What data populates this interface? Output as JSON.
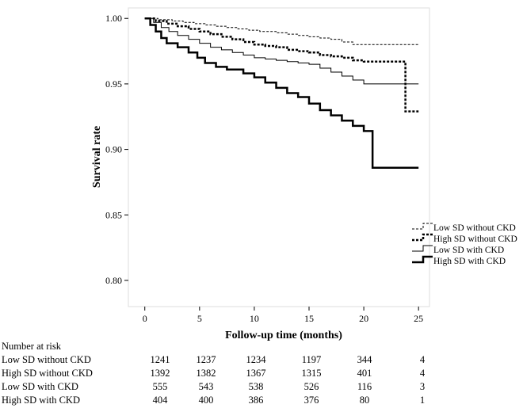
{
  "chart_data": {
    "type": "line",
    "step": true,
    "title": "",
    "xlabel": "Follow-up time (months)",
    "ylabel": "Survival rate",
    "xlim": [
      -1.5,
      26
    ],
    "ylim": [
      0.78,
      1.008
    ],
    "xticks": [
      0,
      5,
      10,
      15,
      20,
      25
    ],
    "xtick_labels": [
      "0",
      "5",
      "10",
      "15",
      "20",
      "25"
    ],
    "yticks": [
      0.8,
      0.85,
      0.9,
      0.95,
      1.0
    ],
    "ytick_labels": [
      "0.80",
      "0.85",
      "0.90",
      "0.95",
      "1.00"
    ],
    "legend_position": "right",
    "series": [
      {
        "name": "Low SD without CKD",
        "style": "thin-dashed",
        "points": [
          [
            0,
            1.0
          ],
          [
            1.2,
            0.999
          ],
          [
            2.5,
            0.998
          ],
          [
            3.5,
            0.997
          ],
          [
            4.5,
            0.996
          ],
          [
            5.5,
            0.995
          ],
          [
            6.5,
            0.994
          ],
          [
            7.5,
            0.993
          ],
          [
            8.5,
            0.992
          ],
          [
            9.5,
            0.991
          ],
          [
            10.5,
            0.99
          ],
          [
            12,
            0.989
          ],
          [
            13,
            0.988
          ],
          [
            14,
            0.987
          ],
          [
            15,
            0.986
          ],
          [
            16,
            0.985
          ],
          [
            17,
            0.984
          ],
          [
            18,
            0.982
          ],
          [
            19,
            0.98
          ],
          [
            25,
            0.98
          ]
        ]
      },
      {
        "name": "High SD without CKD",
        "style": "thick-dashed",
        "points": [
          [
            0,
            1.0
          ],
          [
            1,
            0.998
          ],
          [
            2,
            0.996
          ],
          [
            3,
            0.994
          ],
          [
            4,
            0.992
          ],
          [
            5,
            0.99
          ],
          [
            6,
            0.988
          ],
          [
            7,
            0.986
          ],
          [
            8,
            0.984
          ],
          [
            9,
            0.982
          ],
          [
            10,
            0.98
          ],
          [
            11,
            0.979
          ],
          [
            12,
            0.978
          ],
          [
            13,
            0.976
          ],
          [
            14,
            0.975
          ],
          [
            15,
            0.974
          ],
          [
            16,
            0.972
          ],
          [
            17,
            0.971
          ],
          [
            18,
            0.97
          ],
          [
            19,
            0.968
          ],
          [
            20,
            0.967
          ],
          [
            23.8,
            0.967
          ],
          [
            23.8,
            0.929
          ],
          [
            25,
            0.929
          ]
        ]
      },
      {
        "name": "Low SD with CKD",
        "style": "thin-solid",
        "points": [
          [
            0,
            1.0
          ],
          [
            0.8,
            0.997
          ],
          [
            1.5,
            0.993
          ],
          [
            2.2,
            0.99
          ],
          [
            3,
            0.987
          ],
          [
            4,
            0.984
          ],
          [
            5,
            0.981
          ],
          [
            6,
            0.978
          ],
          [
            7,
            0.976
          ],
          [
            8,
            0.974
          ],
          [
            9,
            0.972
          ],
          [
            10,
            0.97
          ],
          [
            11,
            0.969
          ],
          [
            12,
            0.968
          ],
          [
            13,
            0.967
          ],
          [
            14,
            0.966
          ],
          [
            15,
            0.965
          ],
          [
            16,
            0.962
          ],
          [
            17,
            0.959
          ],
          [
            18,
            0.956
          ],
          [
            19,
            0.953
          ],
          [
            20,
            0.95
          ],
          [
            25,
            0.95
          ]
        ]
      },
      {
        "name": "High SD with CKD",
        "style": "thick-solid",
        "points": [
          [
            0,
            1.0
          ],
          [
            0.5,
            0.995
          ],
          [
            1,
            0.99
          ],
          [
            1.5,
            0.985
          ],
          [
            2,
            0.981
          ],
          [
            3,
            0.978
          ],
          [
            4,
            0.974
          ],
          [
            4.8,
            0.97
          ],
          [
            5.5,
            0.966
          ],
          [
            6.5,
            0.963
          ],
          [
            7.5,
            0.961
          ],
          [
            9,
            0.958
          ],
          [
            10,
            0.955
          ],
          [
            11,
            0.951
          ],
          [
            12,
            0.947
          ],
          [
            13,
            0.943
          ],
          [
            14,
            0.94
          ],
          [
            15,
            0.935
          ],
          [
            16,
            0.93
          ],
          [
            17,
            0.926
          ],
          [
            18,
            0.922
          ],
          [
            19,
            0.918
          ],
          [
            20,
            0.914
          ],
          [
            20.8,
            0.914
          ],
          [
            20.8,
            0.886
          ],
          [
            25,
            0.886
          ]
        ]
      }
    ]
  },
  "risk_table": {
    "title": "Number at risk",
    "rows": [
      {
        "label": "Low SD without CKD",
        "values": [
          "1241",
          "1237",
          "1234",
          "1197",
          "344",
          "4"
        ]
      },
      {
        "label": "High SD without CKD",
        "values": [
          "1392",
          "1382",
          "1367",
          "1315",
          "401",
          "4"
        ]
      },
      {
        "label": "Low SD with CKD",
        "values": [
          "555",
          "543",
          "538",
          "526",
          "116",
          "3"
        ]
      },
      {
        "label": "High SD with CKD",
        "values": [
          "404",
          "400",
          "386",
          "376",
          "80",
          "1"
        ]
      }
    ]
  }
}
